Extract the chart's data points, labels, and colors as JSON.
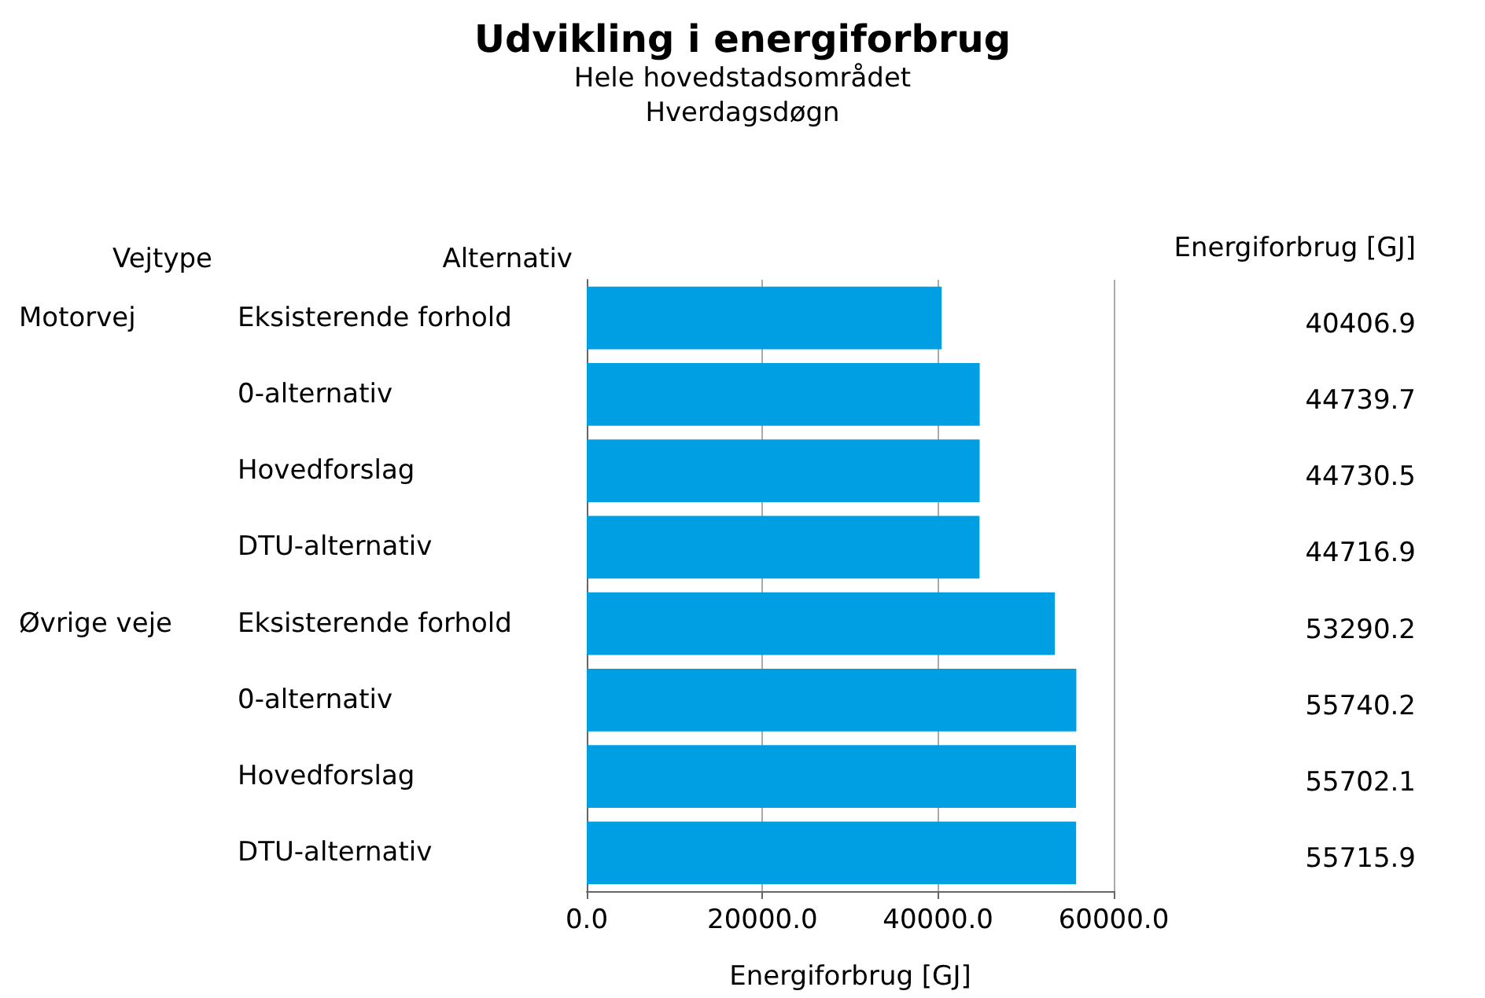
{
  "chart_data": {
    "type": "bar",
    "orientation": "horizontal",
    "title": "Udvikling i energiforbrug",
    "subtitle": "Hele hovedstadsområdet\nHverdagsdøgn",
    "xlabel": "Energiforbrug [GJ]",
    "categories": [
      "Eksisterende forhold",
      "0-alternativ",
      "Hovedforslag",
      "DTU-alternativ",
      "Eksisterende forhold",
      "0-alternativ",
      "Hovedforslag",
      "DTU-alternativ"
    ],
    "values": [
      40406.9,
      44739.7,
      44730.5,
      44716.9,
      53290.2,
      55740.2,
      55702.1,
      55715.9
    ],
    "color": "#009fe3",
    "xlim": [
      0,
      60000
    ],
    "xticks": [
      {
        "value": 0,
        "label": "0.0"
      },
      {
        "value": 20000,
        "label": "20000.0"
      },
      {
        "value": 40000,
        "label": "40000.0"
      },
      {
        "value": 60000,
        "label": "60000.0"
      }
    ],
    "grid": "x",
    "data_labels": true,
    "annotations": [
      "Vejtype",
      "Alternativ",
      "Energiforbrug [GJ]",
      "Motorvej",
      "Øvrige veje"
    ]
  }
}
